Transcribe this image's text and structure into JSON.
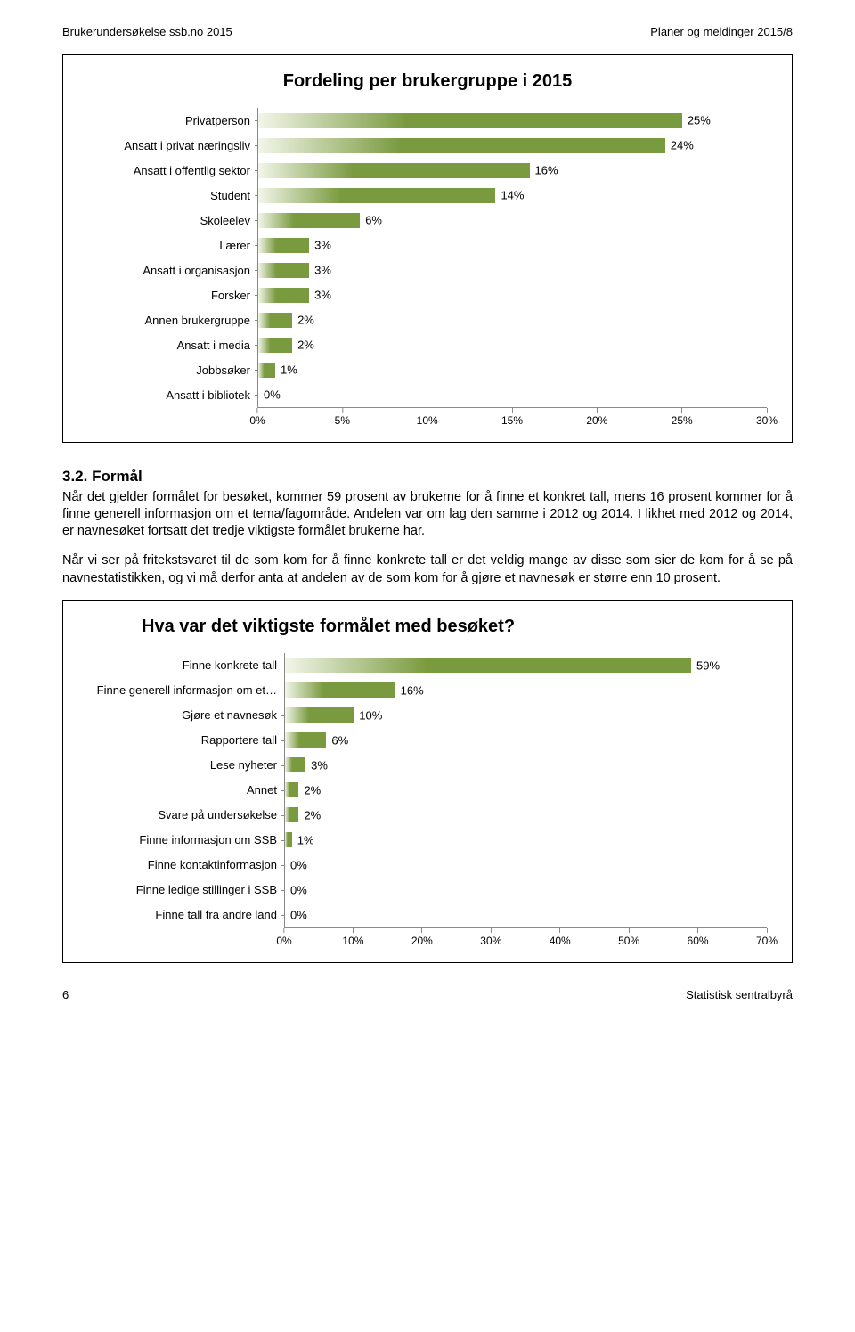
{
  "header": {
    "left": "Brukerundersøkelse ssb.no 2015",
    "right": "Planer og meldinger 2015/8"
  },
  "chart1": {
    "title": "Fordeling per brukergruppe i 2015",
    "bar_color_start": "#f2f6e9",
    "bar_color_end": "#7a9a3f",
    "xmax": 30,
    "xtick_step": 5,
    "xticks": [
      "0%",
      "5%",
      "10%",
      "15%",
      "20%",
      "25%",
      "30%"
    ],
    "items": [
      {
        "label": "Privatperson",
        "value": 25,
        "display": "25%"
      },
      {
        "label": "Ansatt i privat næringsliv",
        "value": 24,
        "display": "24%"
      },
      {
        "label": "Ansatt i offentlig sektor",
        "value": 16,
        "display": "16%"
      },
      {
        "label": "Student",
        "value": 14,
        "display": "14%"
      },
      {
        "label": "Skoleelev",
        "value": 6,
        "display": "6%"
      },
      {
        "label": "Lærer",
        "value": 3,
        "display": "3%"
      },
      {
        "label": "Ansatt i organisasjon",
        "value": 3,
        "display": "3%"
      },
      {
        "label": "Forsker",
        "value": 3,
        "display": "3%"
      },
      {
        "label": "Annen brukergruppe",
        "value": 2,
        "display": "2%"
      },
      {
        "label": "Ansatt i media",
        "value": 2,
        "display": "2%"
      },
      {
        "label": "Jobbsøker",
        "value": 1,
        "display": "1%"
      },
      {
        "label": "Ansatt i bibliotek",
        "value": 0,
        "display": "0%"
      }
    ]
  },
  "section": {
    "heading": "3.2. Formål",
    "para1": "Når det gjelder formålet for besøket, kommer 59 prosent av brukerne for å finne et konkret tall, mens 16 prosent kommer for å finne generell informasjon om et tema/fagområde. Andelen var om lag den samme i 2012 og 2014. I likhet med 2012 og 2014, er navnesøket fortsatt det tredje viktigste formålet brukerne har.",
    "para2": "Når vi ser på fritekstsvaret til de som kom for å finne konkrete tall er det veldig mange av disse som sier de kom for å se på navnestatistikken, og vi må derfor anta at andelen av de som kom for å gjøre et navnesøk er større enn 10 prosent."
  },
  "chart2": {
    "title": "Hva var det viktigste formålet med besøket?",
    "bar_color_start": "#f2f6e9",
    "bar_color_end": "#7a9a3f",
    "xmax": 70,
    "xtick_step": 10,
    "xticks": [
      "0%",
      "10%",
      "20%",
      "30%",
      "40%",
      "50%",
      "60%",
      "70%"
    ],
    "items": [
      {
        "label": "Finne konkrete tall",
        "value": 59,
        "display": "59%"
      },
      {
        "label": "Finne generell informasjon om et…",
        "value": 16,
        "display": "16%"
      },
      {
        "label": "Gjøre et navnesøk",
        "value": 10,
        "display": "10%"
      },
      {
        "label": "Rapportere tall",
        "value": 6,
        "display": "6%"
      },
      {
        "label": "Lese nyheter",
        "value": 3,
        "display": "3%"
      },
      {
        "label": "Annet",
        "value": 2,
        "display": "2%"
      },
      {
        "label": "Svare på undersøkelse",
        "value": 2,
        "display": "2%"
      },
      {
        "label": "Finne informasjon om SSB",
        "value": 1,
        "display": "1%"
      },
      {
        "label": "Finne kontaktinformasjon",
        "value": 0,
        "display": "0%"
      },
      {
        "label": "Finne ledige stillinger i SSB",
        "value": 0,
        "display": "0%"
      },
      {
        "label": "Finne tall fra andre land",
        "value": 0,
        "display": "0%"
      }
    ]
  },
  "footer": {
    "page": "6",
    "right": "Statistisk sentralbyrå"
  }
}
